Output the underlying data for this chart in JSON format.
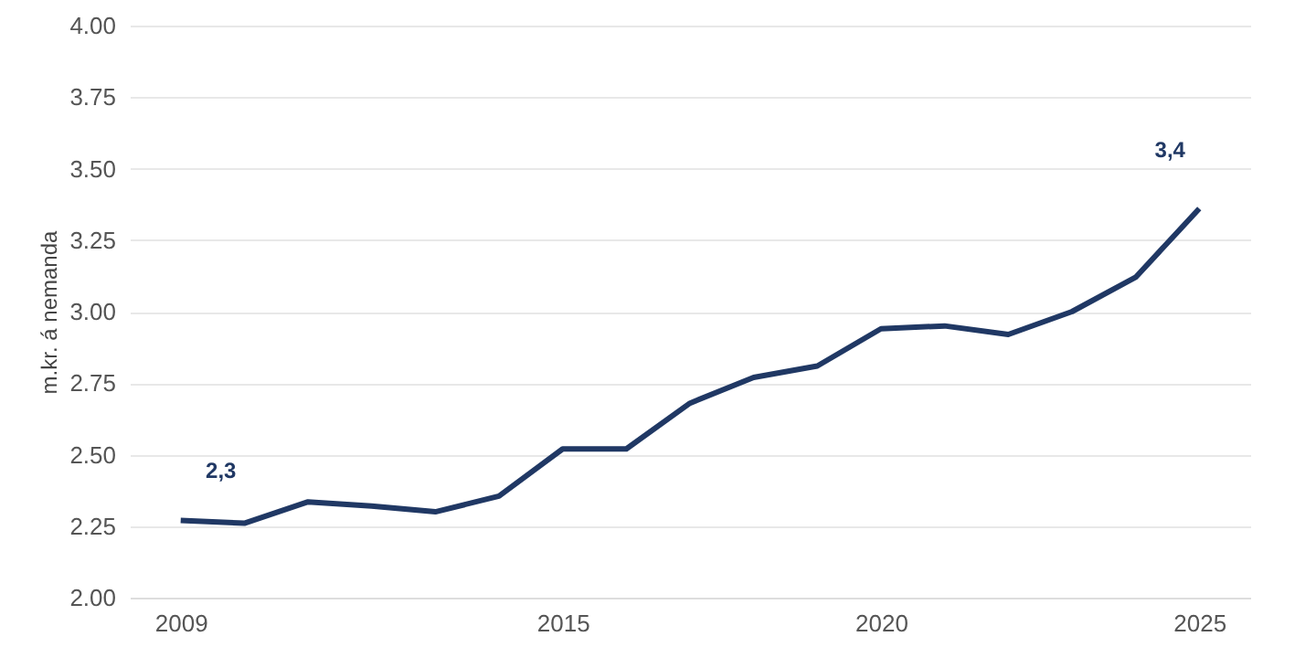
{
  "chart_data": {
    "type": "line",
    "ylabel": "m.kr. á nemanda",
    "x": [
      2009,
      2010,
      2011,
      2012,
      2013,
      2014,
      2015,
      2016,
      2017,
      2018,
      2019,
      2020,
      2021,
      2022,
      2023,
      2024,
      2025
    ],
    "series": [
      {
        "color": "#203864",
        "values": [
          2.27,
          2.26,
          2.335,
          2.32,
          2.3,
          2.355,
          2.52,
          2.52,
          2.68,
          2.77,
          2.81,
          2.94,
          2.95,
          2.92,
          3.0,
          3.12,
          3.36
        ]
      }
    ],
    "xlim": [
      2008.2,
      2025.8
    ],
    "xticks": [
      2009,
      2015,
      2020,
      2025
    ],
    "ylim": [
      2.0,
      4.0
    ],
    "yticks": [
      {
        "value": 2.0,
        "label": "2.00"
      },
      {
        "value": 2.25,
        "label": "2.25"
      },
      {
        "value": 2.5,
        "label": "2.50"
      },
      {
        "value": 2.75,
        "label": "2.75"
      },
      {
        "value": 3.0,
        "label": "3.00"
      },
      {
        "value": 3.25,
        "label": "3.25"
      },
      {
        "value": 3.5,
        "label": "3.50"
      },
      {
        "value": 3.75,
        "label": "3.75"
      },
      {
        "value": 4.0,
        "label": "4.00"
      }
    ],
    "grid": "y",
    "legend": false,
    "marker": "none",
    "line_style": "solid",
    "annotations": [
      {
        "text": "2,3",
        "x": 2009,
        "y": 2.27
      },
      {
        "text": "3,4",
        "x": 2025,
        "y": 3.36
      }
    ]
  }
}
